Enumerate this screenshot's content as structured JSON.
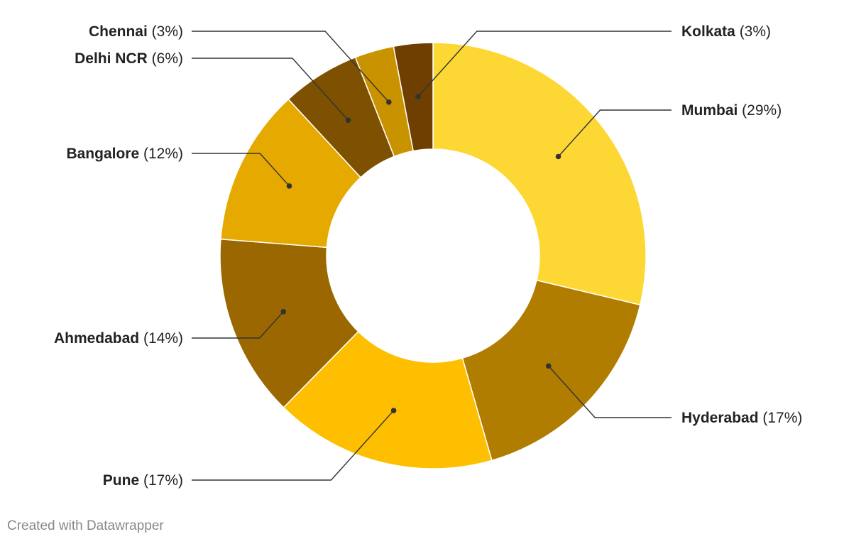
{
  "chart_data": {
    "type": "pie",
    "variant": "donut",
    "title": "",
    "slices": [
      {
        "label": "Mumbai",
        "pct_text": "(29%)",
        "value": 29,
        "color": "#fdd835"
      },
      {
        "label": "Hyderabad",
        "pct_text": "(17%)",
        "value": 17,
        "color": "#b07d00"
      },
      {
        "label": "Pune",
        "pct_text": "(17%)",
        "value": 17,
        "color": "#fdbf00"
      },
      {
        "label": "Ahmedabad",
        "pct_text": "(14%)",
        "value": 14,
        "color": "#9a6700"
      },
      {
        "label": "Bangalore",
        "pct_text": "(12%)",
        "value": 12,
        "color": "#e5a900"
      },
      {
        "label": "Delhi NCR",
        "pct_text": "(6%)",
        "value": 6,
        "color": "#7e5100"
      },
      {
        "label": "Chennai",
        "pct_text": "(3%)",
        "value": 3,
        "color": "#c99300"
      },
      {
        "label": "Kolkata",
        "pct_text": "(3%)",
        "value": 3,
        "color": "#6e3f00"
      }
    ]
  },
  "footer": {
    "credit": "Created with Datawrapper"
  }
}
